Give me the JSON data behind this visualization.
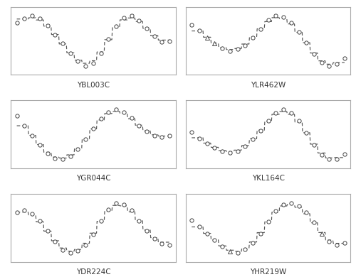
{
  "genes": [
    "YBL003C",
    "YLR462W",
    "YGR044C",
    "YKL164C",
    "YDR224C",
    "YHR219W"
  ],
  "background_color": "#ffffff",
  "line_color": "#666666",
  "gene_data": {
    "YBL003C": [
      0.65,
      0.78,
      0.88,
      0.78,
      0.55,
      0.22,
      -0.1,
      -0.45,
      -0.72,
      -0.88,
      -0.78,
      -0.45,
      0.05,
      0.52,
      0.82,
      0.88,
      0.72,
      0.45,
      0.15,
      -0.05,
      -0.02
    ],
    "YLR462W": [
      0.52,
      0.32,
      0.08,
      -0.12,
      -0.28,
      -0.38,
      -0.32,
      -0.18,
      0.08,
      0.38,
      0.68,
      0.82,
      0.78,
      0.58,
      0.28,
      -0.08,
      -0.48,
      -0.78,
      -0.88,
      -0.82,
      -0.62
    ],
    "YGR044C": [
      0.72,
      0.38,
      0.05,
      -0.28,
      -0.58,
      -0.75,
      -0.78,
      -0.68,
      -0.42,
      -0.08,
      0.28,
      0.62,
      0.85,
      0.95,
      0.85,
      0.65,
      0.38,
      0.18,
      0.05,
      -0.02,
      0.05
    ],
    "YKL164C": [
      0.18,
      -0.02,
      -0.18,
      -0.32,
      -0.42,
      -0.48,
      -0.42,
      -0.28,
      -0.05,
      0.22,
      0.52,
      0.78,
      0.88,
      0.78,
      0.52,
      0.15,
      -0.22,
      -0.55,
      -0.68,
      -0.68,
      -0.52
    ],
    "YDR224C": [
      0.52,
      0.58,
      0.48,
      0.25,
      -0.08,
      -0.42,
      -0.68,
      -0.78,
      -0.72,
      -0.52,
      -0.18,
      0.25,
      0.62,
      0.82,
      0.78,
      0.58,
      0.25,
      -0.08,
      -0.32,
      -0.48,
      -0.52
    ],
    "YHR219W": [
      0.28,
      0.08,
      -0.12,
      -0.32,
      -0.52,
      -0.68,
      -0.72,
      -0.62,
      -0.42,
      -0.12,
      0.25,
      0.58,
      0.78,
      0.82,
      0.72,
      0.52,
      0.22,
      -0.12,
      -0.38,
      -0.48,
      -0.42
    ]
  },
  "special_triangles": {
    "YLR462W": [
      2,
      3
    ],
    "YHR219W": [
      5,
      17
    ]
  },
  "label_fontsize": 7.5
}
